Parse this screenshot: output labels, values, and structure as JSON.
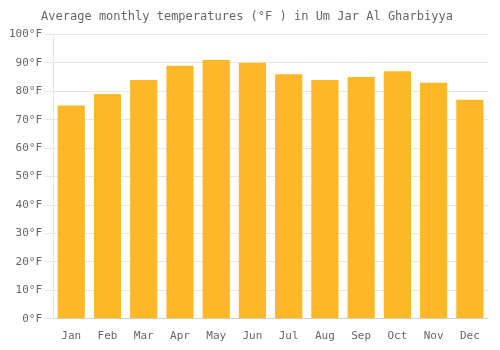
{
  "chart_data": {
    "type": "bar",
    "title": "Average monthly temperatures (°F ) in Um Jar Al Gharbiyya",
    "categories": [
      "Jan",
      "Feb",
      "Mar",
      "Apr",
      "May",
      "Jun",
      "Jul",
      "Aug",
      "Sep",
      "Oct",
      "Nov",
      "Dec"
    ],
    "values": [
      75,
      79,
      84,
      89,
      91,
      90,
      86,
      84,
      85,
      87,
      83,
      77
    ],
    "color": "#FDB827",
    "ylim": [
      0,
      100
    ],
    "yticks": [
      {
        "value": 0,
        "label": "0°F"
      },
      {
        "value": 10,
        "label": "10°F"
      },
      {
        "value": 20,
        "label": "20°F"
      },
      {
        "value": 30,
        "label": "30°F"
      },
      {
        "value": 40,
        "label": "40°F"
      },
      {
        "value": 50,
        "label": "50°F"
      },
      {
        "value": 60,
        "label": "60°F"
      },
      {
        "value": 70,
        "label": "70°F"
      },
      {
        "value": 80,
        "label": "80°F"
      },
      {
        "value": 90,
        "label": "90°F"
      },
      {
        "value": 100,
        "label": "100°F"
      }
    ],
    "grid": true
  }
}
